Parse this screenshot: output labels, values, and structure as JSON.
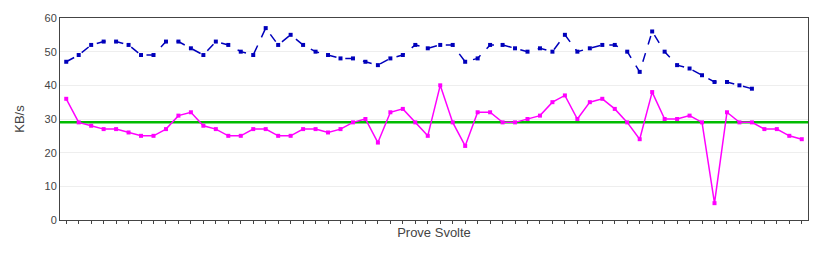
{
  "chart_data": {
    "type": "line",
    "xlabel": "Prove Svolte",
    "ylabel": "KB/s",
    "series": [
      {
        "color": "#0000bb",
        "marker": "square",
        "line_style": "dashed",
        "x": [
          0,
          1,
          2,
          3,
          4,
          5,
          6,
          7,
          8,
          9,
          10,
          11,
          12,
          13,
          14,
          15,
          16,
          17,
          18,
          19,
          20,
          21,
          22,
          23,
          24,
          25,
          26,
          27,
          28,
          29,
          30,
          31,
          32,
          33,
          34,
          35,
          36,
          37,
          38,
          39,
          40,
          41,
          42,
          43,
          44,
          45,
          46,
          47,
          48,
          49,
          50,
          51,
          52,
          53,
          54,
          55
        ],
        "values": [
          47,
          49,
          52,
          53,
          53,
          52,
          49,
          49,
          53,
          53,
          51,
          49,
          53,
          52,
          50,
          49,
          57,
          52,
          55,
          52,
          50,
          49,
          48,
          48,
          47,
          46,
          48,
          49,
          52,
          51,
          52,
          52,
          47,
          48,
          52,
          52,
          51,
          50,
          51,
          50,
          55,
          50,
          51,
          52,
          52,
          50,
          44,
          56,
          50,
          46,
          45,
          43,
          41,
          41,
          40,
          39
        ]
      },
      {
        "color": "#ff00ff",
        "marker": "square",
        "line_style": "solid",
        "x": [
          0,
          1,
          2,
          3,
          4,
          5,
          6,
          7,
          8,
          9,
          10,
          11,
          12,
          13,
          14,
          15,
          16,
          17,
          18,
          19,
          20,
          21,
          22,
          23,
          24,
          25,
          26,
          27,
          28,
          29,
          30,
          31,
          32,
          33,
          34,
          35,
          36,
          37,
          38,
          39,
          40,
          41,
          42,
          43,
          44,
          45,
          46,
          47,
          48,
          49,
          50,
          51,
          52,
          53,
          54,
          55,
          56,
          57,
          58,
          59
        ],
        "values": [
          36,
          29,
          28,
          27,
          27,
          26,
          25,
          25,
          27,
          31,
          32,
          28,
          27,
          25,
          25,
          27,
          27,
          25,
          25,
          27,
          27,
          26,
          27,
          29,
          30,
          23,
          32,
          33,
          29,
          25,
          40,
          29,
          22,
          32,
          32,
          29,
          29,
          30,
          31,
          35,
          37,
          30,
          35,
          36,
          33,
          29,
          24,
          38,
          30,
          30,
          31,
          29,
          5,
          32,
          29,
          29,
          27,
          27,
          25,
          24
        ]
      }
    ],
    "hlines": [
      {
        "value": 29,
        "color": "#00bb00"
      }
    ],
    "xlim": [
      -0.5,
      59.5
    ],
    "xticks": [
      0,
      1,
      2,
      3,
      4,
      5,
      6,
      7,
      8,
      9,
      10,
      11,
      12,
      13,
      14,
      15,
      16,
      17,
      18,
      19,
      20,
      21,
      22,
      23,
      24,
      25,
      26,
      27,
      28,
      29,
      30,
      31,
      32,
      33,
      34,
      35,
      36,
      37,
      38,
      39,
      40,
      41,
      42,
      43,
      44,
      45,
      46,
      47,
      48,
      49,
      50,
      51,
      52,
      53,
      54,
      55,
      56,
      57,
      58,
      59
    ],
    "ylim": [
      0,
      60
    ],
    "yticks": [
      0,
      10,
      20,
      30,
      40,
      50,
      60
    ],
    "tick_labels": "y",
    "grid": true
  }
}
